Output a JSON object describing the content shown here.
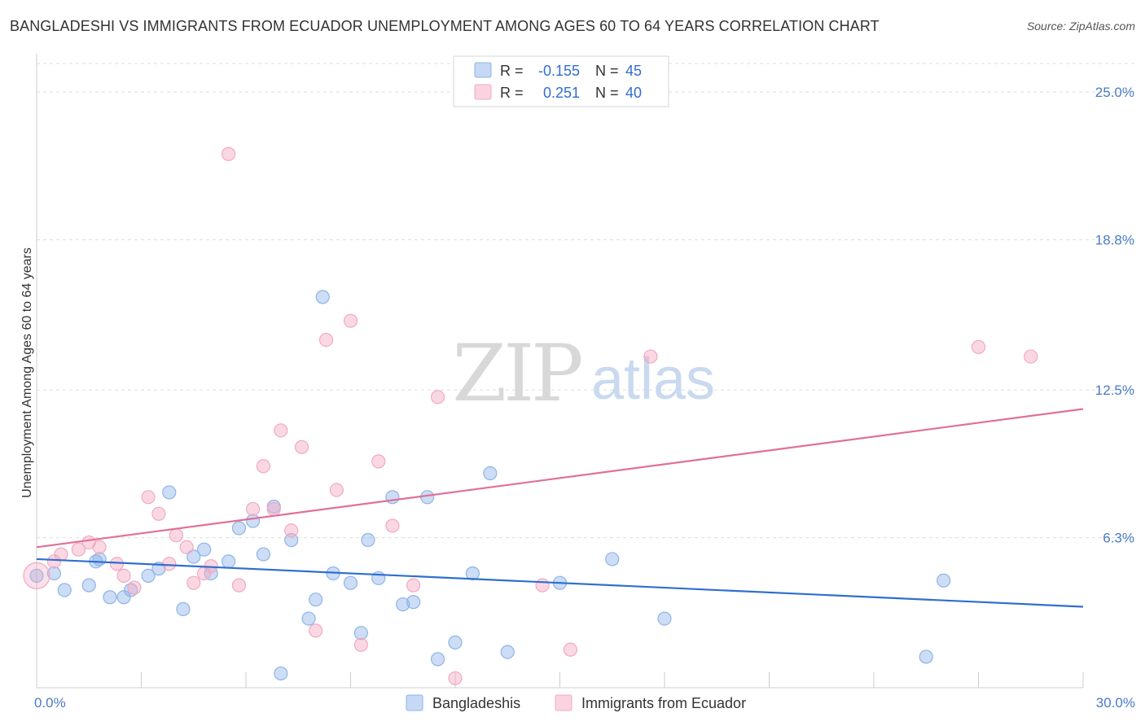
{
  "title": "BANGLADESHI VS IMMIGRANTS FROM ECUADOR UNEMPLOYMENT AMONG AGES 60 TO 64 YEARS CORRELATION CHART",
  "source": "Source: ZipAtlas.com",
  "watermark": {
    "zip": "ZIP",
    "atlas": "atlas"
  },
  "legend": {
    "r_label": "R =",
    "n_label": "N =",
    "series": [
      {
        "r": "-0.155",
        "n": "45"
      },
      {
        "r": "0.251",
        "n": "40"
      }
    ]
  },
  "chart_data": {
    "type": "scatter",
    "title": "",
    "xlabel": "",
    "ylabel": "Unemployment Among Ages 60 to 64 years",
    "xlim": [
      0,
      30
    ],
    "ylim": [
      0,
      26.2
    ],
    "x_tick_labels": {
      "min": "0.0%",
      "max": "30.0%"
    },
    "y_ticks": [
      6.3,
      12.5,
      18.8,
      25.0
    ],
    "y_tick_labels": [
      "6.3%",
      "12.5%",
      "18.8%",
      "25.0%"
    ],
    "grid": true,
    "legend_position": "top-center",
    "series": [
      {
        "name": "Bangladeshis",
        "color": "#8fb4e8",
        "line_color": "#2f6fd0",
        "trend": {
          "x": [
            0,
            30
          ],
          "y": [
            5.4,
            3.4
          ]
        },
        "points": [
          [
            0.0,
            4.7
          ],
          [
            0.5,
            4.8
          ],
          [
            0.8,
            4.1
          ],
          [
            1.5,
            4.3
          ],
          [
            1.8,
            5.4
          ],
          [
            1.7,
            5.3
          ],
          [
            2.1,
            3.8
          ],
          [
            2.5,
            3.8
          ],
          [
            2.7,
            4.1
          ],
          [
            3.2,
            4.7
          ],
          [
            3.5,
            5.0
          ],
          [
            3.8,
            8.2
          ],
          [
            4.2,
            3.3
          ],
          [
            4.5,
            5.5
          ],
          [
            4.8,
            5.8
          ],
          [
            5.0,
            4.8
          ],
          [
            5.5,
            5.3
          ],
          [
            5.8,
            6.7
          ],
          [
            6.2,
            7.0
          ],
          [
            6.5,
            5.6
          ],
          [
            6.8,
            7.6
          ],
          [
            7.0,
            0.6
          ],
          [
            7.3,
            6.2
          ],
          [
            7.8,
            2.9
          ],
          [
            8.0,
            3.7
          ],
          [
            8.2,
            16.4
          ],
          [
            8.5,
            4.8
          ],
          [
            9.0,
            4.4
          ],
          [
            9.3,
            2.3
          ],
          [
            9.5,
            6.2
          ],
          [
            9.8,
            4.6
          ],
          [
            10.2,
            8.0
          ],
          [
            10.5,
            3.5
          ],
          [
            10.8,
            3.6
          ],
          [
            11.2,
            8.0
          ],
          [
            11.5,
            1.2
          ],
          [
            12.0,
            1.9
          ],
          [
            12.5,
            4.8
          ],
          [
            13.0,
            9.0
          ],
          [
            13.5,
            1.5
          ],
          [
            15.0,
            4.4
          ],
          [
            16.5,
            5.4
          ],
          [
            18.0,
            2.9
          ],
          [
            25.5,
            1.3
          ],
          [
            26.0,
            4.5
          ]
        ]
      },
      {
        "name": "Immigrants from Ecuador",
        "color": "#f3a8c0",
        "line_color": "#e07098",
        "trend": {
          "x": [
            0,
            30
          ],
          "y": [
            5.9,
            11.7
          ]
        },
        "points": [
          [
            0.0,
            4.7
          ],
          [
            0.5,
            5.3
          ],
          [
            0.7,
            5.6
          ],
          [
            1.2,
            5.8
          ],
          [
            1.5,
            6.1
          ],
          [
            1.8,
            5.9
          ],
          [
            2.3,
            5.2
          ],
          [
            2.5,
            4.7
          ],
          [
            2.8,
            4.2
          ],
          [
            3.2,
            8.0
          ],
          [
            3.5,
            7.3
          ],
          [
            3.8,
            5.2
          ],
          [
            4.0,
            6.4
          ],
          [
            4.3,
            5.9
          ],
          [
            4.5,
            4.4
          ],
          [
            4.8,
            4.8
          ],
          [
            5.0,
            5.1
          ],
          [
            5.5,
            22.4
          ],
          [
            5.8,
            4.3
          ],
          [
            6.2,
            7.5
          ],
          [
            6.5,
            9.3
          ],
          [
            6.8,
            7.5
          ],
          [
            7.0,
            10.8
          ],
          [
            7.3,
            6.6
          ],
          [
            7.6,
            10.1
          ],
          [
            8.0,
            2.4
          ],
          [
            8.3,
            14.6
          ],
          [
            8.6,
            8.3
          ],
          [
            9.0,
            15.4
          ],
          [
            9.3,
            1.8
          ],
          [
            9.8,
            9.5
          ],
          [
            10.2,
            6.8
          ],
          [
            10.8,
            4.3
          ],
          [
            11.5,
            12.2
          ],
          [
            12.0,
            0.4
          ],
          [
            14.5,
            4.3
          ],
          [
            15.3,
            1.6
          ],
          [
            17.6,
            13.9
          ],
          [
            28.5,
            13.9
          ],
          [
            27.0,
            14.3
          ]
        ]
      }
    ]
  }
}
